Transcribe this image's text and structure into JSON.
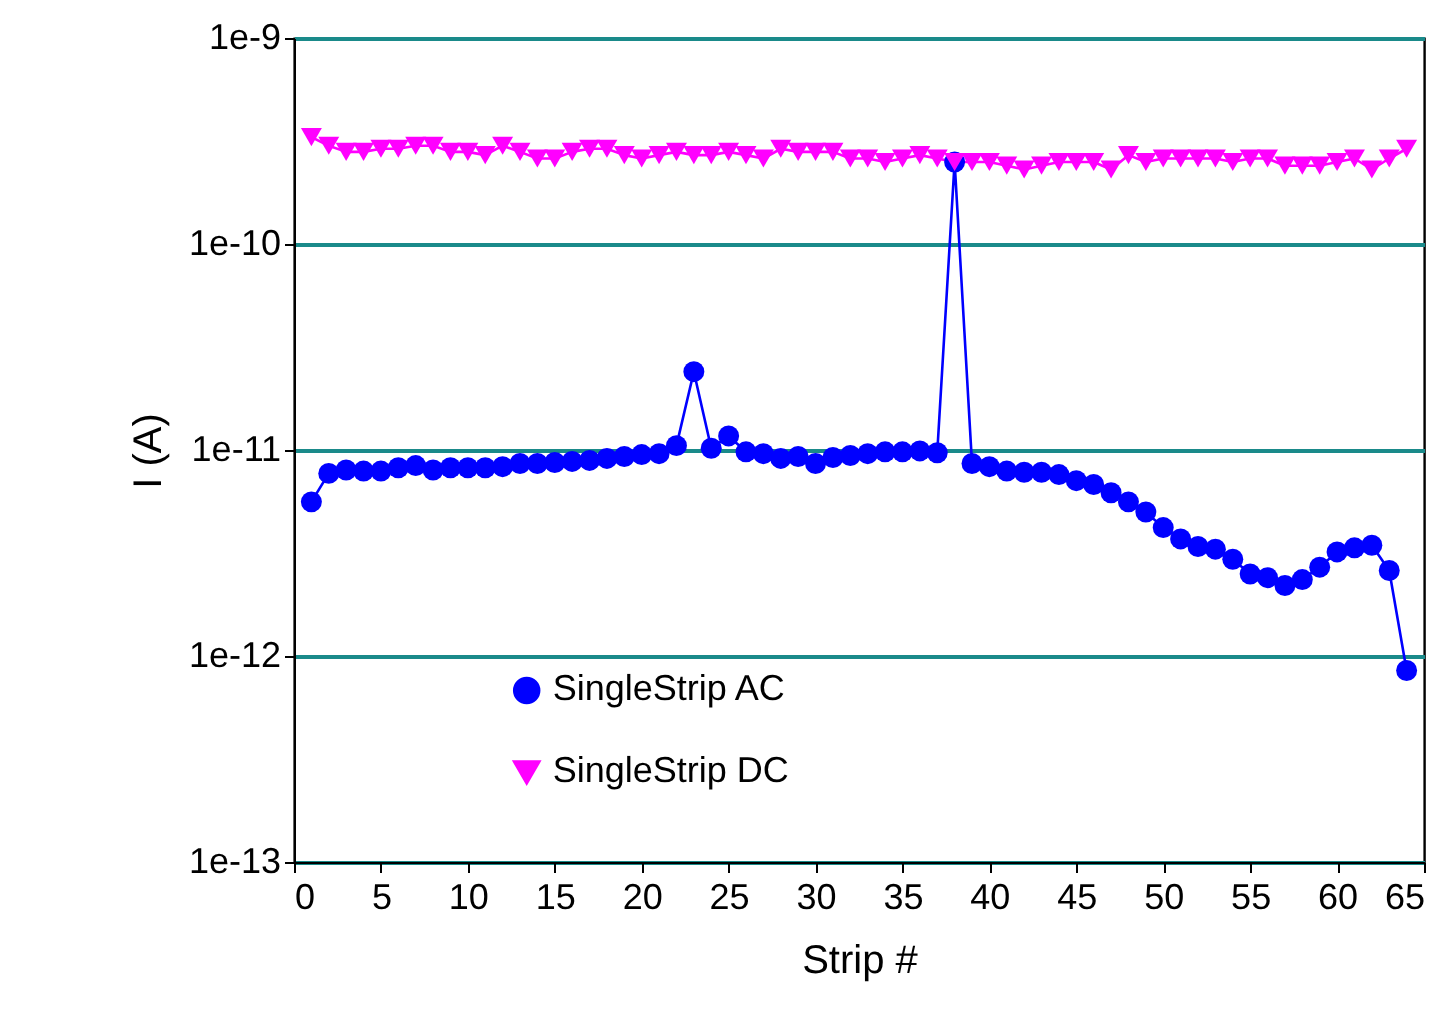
{
  "chart_data": {
    "type": "line",
    "xlabel": "Strip #",
    "ylabel": "I (A)",
    "x": [
      1,
      2,
      3,
      4,
      5,
      6,
      7,
      8,
      9,
      10,
      11,
      12,
      13,
      14,
      15,
      16,
      17,
      18,
      19,
      20,
      21,
      22,
      23,
      24,
      25,
      26,
      27,
      28,
      29,
      30,
      31,
      32,
      33,
      34,
      35,
      36,
      37,
      38,
      39,
      40,
      41,
      42,
      43,
      44,
      45,
      46,
      47,
      48,
      49,
      50,
      51,
      52,
      53,
      54,
      55,
      56,
      57,
      58,
      59,
      60,
      61,
      62,
      63,
      64
    ],
    "series": [
      {
        "name": "SingleStrip AC",
        "color": "#0000ff",
        "marker": "circle",
        "values": [
          5.6e-12,
          7.7e-12,
          8e-12,
          7.9e-12,
          7.9e-12,
          8.2e-12,
          8.4e-12,
          8e-12,
          8.2e-12,
          8.2e-12,
          8.2e-12,
          8.3e-12,
          8.6e-12,
          8.6e-12,
          8.7e-12,
          8.8e-12,
          8.9e-12,
          9.1e-12,
          9.3e-12,
          9.5e-12,
          9.6e-12,
          1.05e-11,
          2.4e-11,
          1.02e-11,
          1.17e-11,
          9.8e-12,
          9.6e-12,
          9.1e-12,
          9.3e-12,
          8.6e-12,
          9.2e-12,
          9.4e-12,
          9.6e-12,
          9.8e-12,
          9.8e-12,
          9.9e-12,
          9.7e-12,
          2.5e-10,
          8.6e-12,
          8.3e-12,
          7.9e-12,
          7.8e-12,
          7.8e-12,
          7.6e-12,
          7.1e-12,
          6.8e-12,
          6.2e-12,
          5.6e-12,
          5e-12,
          4.2e-12,
          3.7e-12,
          3.4e-12,
          3.3e-12,
          2.95e-12,
          2.5e-12,
          2.4e-12,
          2.2e-12,
          2.35e-12,
          2.7e-12,
          3.2e-12,
          3.35e-12,
          3.45e-12,
          2.6e-12,
          8.5e-13
        ]
      },
      {
        "name": "SingleStrip DC",
        "color": "#ff00ff",
        "marker": "triangle-down",
        "values": [
          3.3e-10,
          3e-10,
          2.8e-10,
          2.8e-10,
          2.9e-10,
          2.9e-10,
          3e-10,
          3e-10,
          2.8e-10,
          2.8e-10,
          2.7e-10,
          3e-10,
          2.8e-10,
          2.6e-10,
          2.6e-10,
          2.8e-10,
          2.9e-10,
          2.9e-10,
          2.7e-10,
          2.6e-10,
          2.7e-10,
          2.8e-10,
          2.7e-10,
          2.7e-10,
          2.8e-10,
          2.7e-10,
          2.6e-10,
          2.9e-10,
          2.8e-10,
          2.8e-10,
          2.8e-10,
          2.6e-10,
          2.6e-10,
          2.5e-10,
          2.6e-10,
          2.7e-10,
          2.6e-10,
          2.5e-10,
          2.5e-10,
          2.5e-10,
          2.4e-10,
          2.3e-10,
          2.4e-10,
          2.5e-10,
          2.5e-10,
          2.5e-10,
          2.3e-10,
          2.7e-10,
          2.5e-10,
          2.6e-10,
          2.6e-10,
          2.6e-10,
          2.6e-10,
          2.5e-10,
          2.6e-10,
          2.6e-10,
          2.4e-10,
          2.4e-10,
          2.4e-10,
          2.5e-10,
          2.6e-10,
          2.3e-10,
          2.6e-10,
          2.9e-10
        ]
      }
    ],
    "xlim": [
      0,
      65
    ],
    "xticks": [
      0,
      5,
      10,
      15,
      20,
      25,
      30,
      35,
      40,
      45,
      50,
      55,
      60,
      65
    ],
    "ylim": [
      1e-13,
      1e-09
    ],
    "yticks": [
      {
        "value": 1e-13,
        "label": "1e-13"
      },
      {
        "value": 1e-12,
        "label": "1e-12"
      },
      {
        "value": 1e-11,
        "label": "1e-11"
      },
      {
        "value": 1e-10,
        "label": "1e-10"
      },
      {
        "value": 1e-09,
        "label": "1e-9"
      }
    ],
    "log": "y",
    "grid": "y",
    "legend": "bottom",
    "line_style": "solid"
  }
}
